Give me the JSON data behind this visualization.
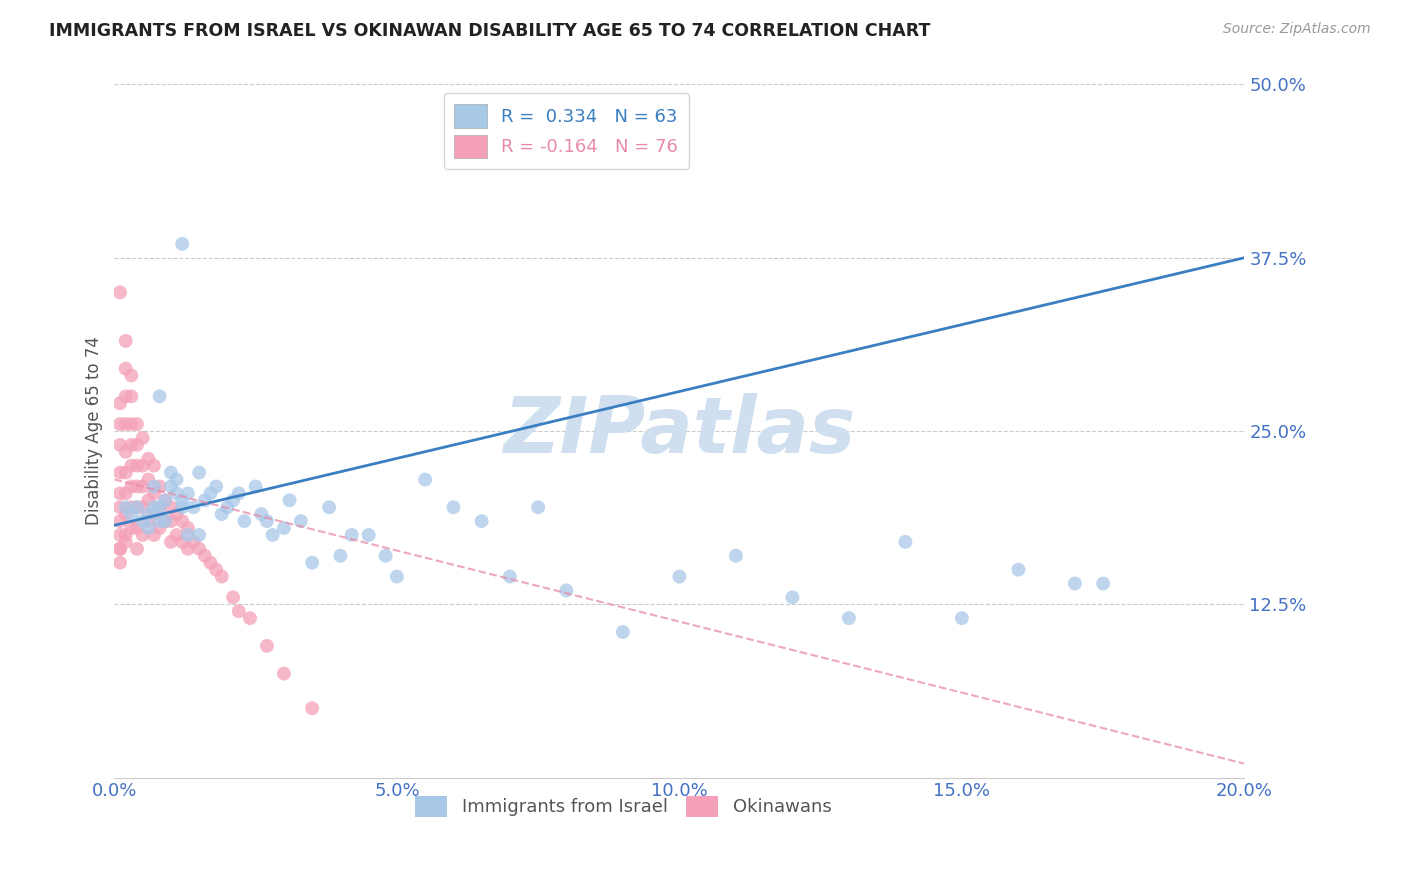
{
  "title": "IMMIGRANTS FROM ISRAEL VS OKINAWAN DISABILITY AGE 65 TO 74 CORRELATION CHART",
  "source": "Source: ZipAtlas.com",
  "ylabel": "Disability Age 65 to 74",
  "legend_label_pink": "Okinawans",
  "legend_label_blue": "Immigrants from Israel",
  "R_blue": 0.334,
  "N_blue": 63,
  "R_pink": -0.164,
  "N_pink": 76,
  "xlim": [
    0.0,
    0.2
  ],
  "ylim": [
    0.0,
    0.5
  ],
  "yticks": [
    0.125,
    0.25,
    0.375,
    0.5
  ],
  "xticks": [
    0.0,
    0.05,
    0.1,
    0.15,
    0.2
  ],
  "background_color": "#ffffff",
  "blue_color": "#a8c8e8",
  "pink_color": "#f4a0b8",
  "line_blue_color": "#3a7fc1",
  "line_pink_color": "#e88aaa",
  "watermark_text_color": "#d0dff0",
  "title_color": "#222222",
  "axis_tick_color": "#4472c4",
  "blue_scatter": {
    "x": [
      0.002,
      0.003,
      0.004,
      0.005,
      0.006,
      0.006,
      0.007,
      0.007,
      0.008,
      0.008,
      0.009,
      0.009,
      0.01,
      0.01,
      0.011,
      0.011,
      0.012,
      0.012,
      0.013,
      0.013,
      0.014,
      0.015,
      0.015,
      0.016,
      0.017,
      0.018,
      0.019,
      0.02,
      0.021,
      0.022,
      0.023,
      0.025,
      0.026,
      0.027,
      0.028,
      0.03,
      0.031,
      0.033,
      0.035,
      0.038,
      0.04,
      0.042,
      0.045,
      0.048,
      0.05,
      0.055,
      0.06,
      0.065,
      0.07,
      0.075,
      0.08,
      0.09,
      0.1,
      0.11,
      0.12,
      0.13,
      0.14,
      0.15,
      0.16,
      0.17,
      0.175,
      0.012,
      0.008
    ],
    "y": [
      0.195,
      0.19,
      0.195,
      0.185,
      0.19,
      0.18,
      0.195,
      0.21,
      0.195,
      0.185,
      0.2,
      0.185,
      0.21,
      0.22,
      0.215,
      0.205,
      0.2,
      0.195,
      0.205,
      0.175,
      0.195,
      0.22,
      0.175,
      0.2,
      0.205,
      0.21,
      0.19,
      0.195,
      0.2,
      0.205,
      0.185,
      0.21,
      0.19,
      0.185,
      0.175,
      0.18,
      0.2,
      0.185,
      0.155,
      0.195,
      0.16,
      0.175,
      0.175,
      0.16,
      0.145,
      0.215,
      0.195,
      0.185,
      0.145,
      0.195,
      0.135,
      0.105,
      0.145,
      0.16,
      0.13,
      0.115,
      0.17,
      0.115,
      0.15,
      0.14,
      0.14,
      0.385,
      0.275
    ]
  },
  "pink_scatter": {
    "x": [
      0.001,
      0.001,
      0.001,
      0.001,
      0.001,
      0.001,
      0.001,
      0.001,
      0.001,
      0.002,
      0.002,
      0.002,
      0.002,
      0.002,
      0.002,
      0.002,
      0.002,
      0.003,
      0.003,
      0.003,
      0.003,
      0.003,
      0.003,
      0.003,
      0.004,
      0.004,
      0.004,
      0.004,
      0.004,
      0.004,
      0.004,
      0.005,
      0.005,
      0.005,
      0.005,
      0.005,
      0.006,
      0.006,
      0.006,
      0.006,
      0.007,
      0.007,
      0.007,
      0.007,
      0.008,
      0.008,
      0.008,
      0.009,
      0.009,
      0.01,
      0.01,
      0.01,
      0.011,
      0.011,
      0.012,
      0.012,
      0.013,
      0.013,
      0.014,
      0.015,
      0.016,
      0.017,
      0.018,
      0.019,
      0.021,
      0.022,
      0.024,
      0.027,
      0.03,
      0.035,
      0.001,
      0.002,
      0.002,
      0.003,
      0.001,
      0.001
    ],
    "y": [
      0.27,
      0.255,
      0.24,
      0.22,
      0.205,
      0.195,
      0.185,
      0.175,
      0.165,
      0.295,
      0.275,
      0.255,
      0.235,
      0.22,
      0.205,
      0.19,
      0.175,
      0.275,
      0.255,
      0.24,
      0.225,
      0.21,
      0.195,
      0.18,
      0.255,
      0.24,
      0.225,
      0.21,
      0.195,
      0.18,
      0.165,
      0.245,
      0.225,
      0.21,
      0.195,
      0.175,
      0.23,
      0.215,
      0.2,
      0.185,
      0.225,
      0.205,
      0.19,
      0.175,
      0.21,
      0.195,
      0.18,
      0.2,
      0.185,
      0.195,
      0.185,
      0.17,
      0.19,
      0.175,
      0.185,
      0.17,
      0.18,
      0.165,
      0.17,
      0.165,
      0.16,
      0.155,
      0.15,
      0.145,
      0.13,
      0.12,
      0.115,
      0.095,
      0.075,
      0.05,
      0.35,
      0.315,
      0.17,
      0.29,
      0.165,
      0.155
    ]
  },
  "blue_line": {
    "x0": 0.0,
    "y0": 0.182,
    "x1": 0.2,
    "y1": 0.375
  },
  "pink_line": {
    "x0": 0.0,
    "y0": 0.215,
    "x1": 0.2,
    "y1": 0.01
  }
}
